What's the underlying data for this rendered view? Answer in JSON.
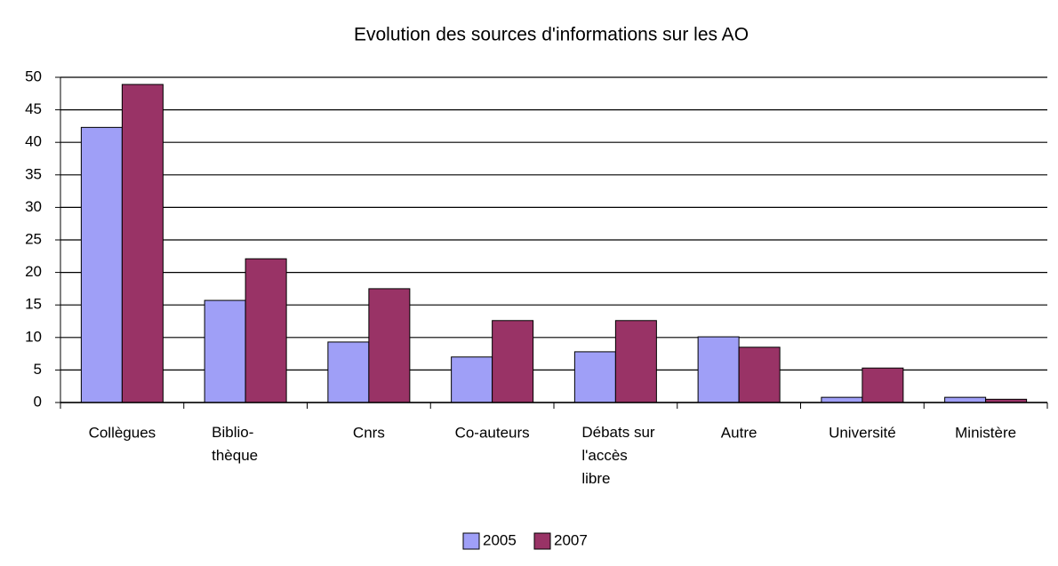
{
  "chart_data": {
    "type": "bar",
    "title": "Evolution des sources d'informations sur les AO",
    "categories": [
      "Collègues",
      "Biblio-\nthèque",
      "Cnrs",
      "Co-auteurs",
      "Débats sur\nl'accès\nlibre",
      "Autre",
      "Université",
      "Ministère"
    ],
    "series": [
      {
        "name": "2005",
        "color": "#9f9ff7",
        "values": [
          42.3,
          15.7,
          9.3,
          7,
          7.8,
          10.1,
          0.8,
          0.8
        ]
      },
      {
        "name": "2007",
        "color": "#993366",
        "values": [
          48.9,
          22.1,
          17.5,
          12.6,
          12.6,
          8.5,
          5.3,
          0.5
        ]
      }
    ],
    "ylim": [
      0,
      50
    ],
    "yticks": [
      0,
      5,
      10,
      15,
      20,
      25,
      30,
      35,
      40,
      45,
      50
    ],
    "grid": true,
    "legend": "bottom"
  }
}
